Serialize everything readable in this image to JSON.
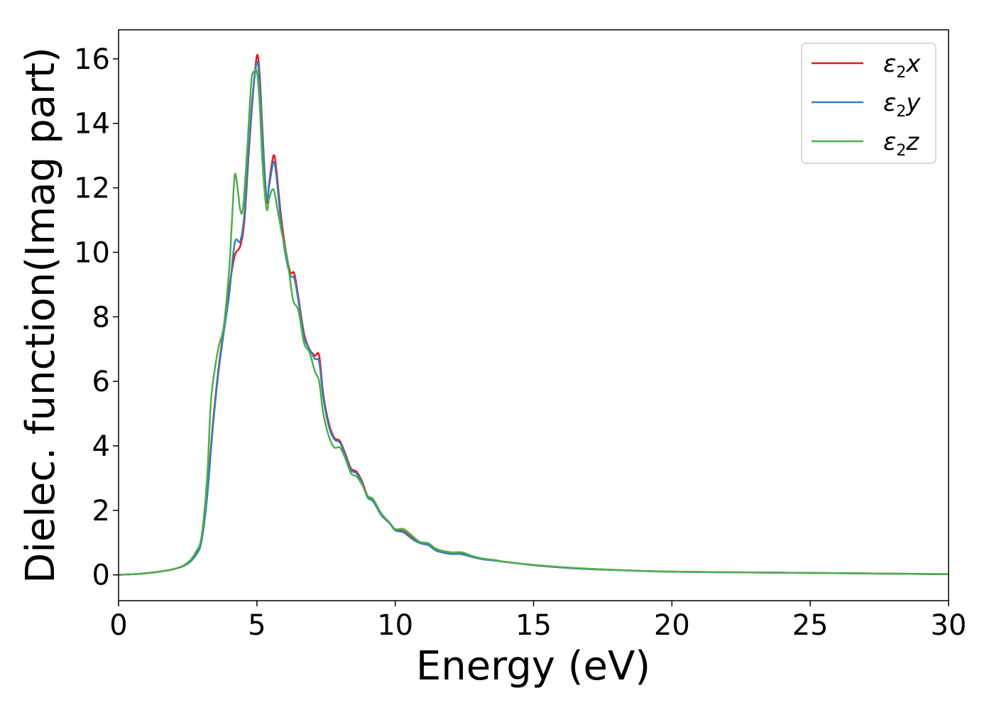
{
  "chart_data": {
    "type": "line",
    "title": "",
    "xlabel": "Energy (eV)",
    "ylabel": "Dielec. function(Imag part)",
    "xlim": [
      0,
      30
    ],
    "ylim": [
      -0.8,
      16.9
    ],
    "xticks": [
      0,
      5,
      10,
      15,
      20,
      25,
      30
    ],
    "yticks": [
      0,
      2,
      4,
      6,
      8,
      10,
      12,
      14,
      16
    ],
    "grid": false,
    "legend_position": "top-right",
    "series": [
      {
        "name": "ε2x",
        "legend": {
          "base": "ε",
          "sub": "2",
          "tail": "x"
        },
        "color": "#e41a1c",
        "points": [
          [
            0,
            0
          ],
          [
            1,
            0.05
          ],
          [
            2,
            0.18
          ],
          [
            2.5,
            0.35
          ],
          [
            2.8,
            0.65
          ],
          [
            3.0,
            1.1
          ],
          [
            3.2,
            2.5
          ],
          [
            3.4,
            4.6
          ],
          [
            3.6,
            6.3
          ],
          [
            3.8,
            7.6
          ],
          [
            4.0,
            8.9
          ],
          [
            4.2,
            9.9
          ],
          [
            4.4,
            10.2
          ],
          [
            4.55,
            11.0
          ],
          [
            4.7,
            13.0
          ],
          [
            4.85,
            14.8
          ],
          [
            5.0,
            16.1
          ],
          [
            5.1,
            15.5
          ],
          [
            5.2,
            13.8
          ],
          [
            5.35,
            11.6
          ],
          [
            5.45,
            12.2
          ],
          [
            5.6,
            13.0
          ],
          [
            5.7,
            12.6
          ],
          [
            5.85,
            11.3
          ],
          [
            6.0,
            10.3
          ],
          [
            6.2,
            9.4
          ],
          [
            6.35,
            9.35
          ],
          [
            6.5,
            8.6
          ],
          [
            6.7,
            7.5
          ],
          [
            6.9,
            7.0
          ],
          [
            7.1,
            6.8
          ],
          [
            7.25,
            6.8
          ],
          [
            7.4,
            5.6
          ],
          [
            7.6,
            4.7
          ],
          [
            7.8,
            4.25
          ],
          [
            8.0,
            4.15
          ],
          [
            8.2,
            3.75
          ],
          [
            8.4,
            3.3
          ],
          [
            8.6,
            3.2
          ],
          [
            8.8,
            2.9
          ],
          [
            9.0,
            2.45
          ],
          [
            9.2,
            2.3
          ],
          [
            9.5,
            1.85
          ],
          [
            9.8,
            1.6
          ],
          [
            10.0,
            1.4
          ],
          [
            10.3,
            1.35
          ],
          [
            10.6,
            1.15
          ],
          [
            10.9,
            1.0
          ],
          [
            11.2,
            0.95
          ],
          [
            11.5,
            0.75
          ],
          [
            12.0,
            0.65
          ],
          [
            12.4,
            0.65
          ],
          [
            12.8,
            0.55
          ],
          [
            13.2,
            0.48
          ],
          [
            13.6,
            0.45
          ],
          [
            14.0,
            0.4
          ],
          [
            15.0,
            0.3
          ],
          [
            16.0,
            0.23
          ],
          [
            17.0,
            0.18
          ],
          [
            18.0,
            0.15
          ],
          [
            19.0,
            0.12
          ],
          [
            20.0,
            0.1
          ],
          [
            22.0,
            0.08
          ],
          [
            25.0,
            0.06
          ],
          [
            27.5,
            0.04
          ],
          [
            30.0,
            0.02
          ]
        ]
      },
      {
        "name": "ε2y",
        "legend": {
          "base": "ε",
          "sub": "2",
          "tail": "y"
        },
        "color": "#377eb8",
        "points": [
          [
            0,
            0
          ],
          [
            1,
            0.05
          ],
          [
            2,
            0.18
          ],
          [
            2.5,
            0.35
          ],
          [
            2.8,
            0.62
          ],
          [
            3.0,
            1.05
          ],
          [
            3.2,
            2.4
          ],
          [
            3.4,
            4.5
          ],
          [
            3.6,
            6.2
          ],
          [
            3.8,
            7.5
          ],
          [
            4.0,
            8.7
          ],
          [
            4.2,
            10.3
          ],
          [
            4.4,
            10.35
          ],
          [
            4.55,
            11.2
          ],
          [
            4.7,
            13.2
          ],
          [
            4.85,
            14.9
          ],
          [
            5.0,
            15.9
          ],
          [
            5.1,
            15.3
          ],
          [
            5.2,
            13.6
          ],
          [
            5.35,
            11.7
          ],
          [
            5.45,
            12.1
          ],
          [
            5.6,
            12.8
          ],
          [
            5.7,
            12.4
          ],
          [
            5.85,
            11.1
          ],
          [
            6.0,
            10.1
          ],
          [
            6.2,
            9.3
          ],
          [
            6.35,
            9.2
          ],
          [
            6.5,
            8.5
          ],
          [
            6.7,
            7.4
          ],
          [
            6.9,
            7.0
          ],
          [
            7.1,
            6.7
          ],
          [
            7.25,
            6.6
          ],
          [
            7.4,
            5.5
          ],
          [
            7.6,
            4.6
          ],
          [
            7.8,
            4.2
          ],
          [
            8.0,
            4.1
          ],
          [
            8.2,
            3.7
          ],
          [
            8.4,
            3.25
          ],
          [
            8.6,
            3.15
          ],
          [
            8.8,
            2.85
          ],
          [
            9.0,
            2.4
          ],
          [
            9.2,
            2.28
          ],
          [
            9.5,
            1.85
          ],
          [
            9.8,
            1.6
          ],
          [
            10.0,
            1.38
          ],
          [
            10.3,
            1.32
          ],
          [
            10.6,
            1.12
          ],
          [
            10.9,
            0.98
          ],
          [
            11.2,
            0.92
          ],
          [
            11.5,
            0.74
          ],
          [
            12.0,
            0.66
          ],
          [
            12.4,
            0.64
          ],
          [
            12.8,
            0.55
          ],
          [
            13.2,
            0.48
          ],
          [
            13.6,
            0.44
          ],
          [
            14.0,
            0.4
          ],
          [
            15.0,
            0.3
          ],
          [
            16.0,
            0.23
          ],
          [
            17.0,
            0.18
          ],
          [
            18.0,
            0.15
          ],
          [
            19.0,
            0.12
          ],
          [
            20.0,
            0.1
          ],
          [
            22.0,
            0.08
          ],
          [
            25.0,
            0.06
          ],
          [
            27.5,
            0.04
          ],
          [
            30.0,
            0.02
          ]
        ]
      },
      {
        "name": "ε2z",
        "legend": {
          "base": "ε",
          "sub": "2",
          "tail": "z"
        },
        "color": "#4daf4a",
        "points": [
          [
            0,
            0
          ],
          [
            1,
            0.05
          ],
          [
            2,
            0.18
          ],
          [
            2.5,
            0.38
          ],
          [
            2.8,
            0.72
          ],
          [
            3.0,
            1.2
          ],
          [
            3.2,
            3.0
          ],
          [
            3.35,
            5.5
          ],
          [
            3.6,
            7.0
          ],
          [
            3.8,
            7.7
          ],
          [
            4.0,
            9.5
          ],
          [
            4.1,
            11.0
          ],
          [
            4.2,
            12.4
          ],
          [
            4.3,
            12.0
          ],
          [
            4.4,
            11.3
          ],
          [
            4.5,
            11.4
          ],
          [
            4.65,
            13.2
          ],
          [
            4.8,
            15.3
          ],
          [
            4.9,
            15.6
          ],
          [
            5.0,
            15.6
          ],
          [
            5.1,
            14.6
          ],
          [
            5.2,
            12.8
          ],
          [
            5.35,
            11.35
          ],
          [
            5.45,
            11.7
          ],
          [
            5.6,
            11.95
          ],
          [
            5.75,
            11.3
          ],
          [
            5.9,
            10.6
          ],
          [
            6.1,
            9.8
          ],
          [
            6.3,
            8.55
          ],
          [
            6.5,
            8.2
          ],
          [
            6.7,
            7.2
          ],
          [
            6.9,
            6.9
          ],
          [
            7.1,
            6.3
          ],
          [
            7.25,
            6.0
          ],
          [
            7.4,
            5.0
          ],
          [
            7.6,
            4.3
          ],
          [
            7.8,
            3.95
          ],
          [
            8.0,
            3.95
          ],
          [
            8.2,
            3.6
          ],
          [
            8.4,
            3.15
          ],
          [
            8.6,
            3.05
          ],
          [
            8.8,
            2.8
          ],
          [
            9.0,
            2.45
          ],
          [
            9.2,
            2.35
          ],
          [
            9.5,
            1.9
          ],
          [
            9.8,
            1.62
          ],
          [
            10.0,
            1.42
          ],
          [
            10.3,
            1.42
          ],
          [
            10.6,
            1.22
          ],
          [
            10.9,
            1.02
          ],
          [
            11.2,
            0.98
          ],
          [
            11.5,
            0.8
          ],
          [
            12.0,
            0.7
          ],
          [
            12.4,
            0.7
          ],
          [
            12.8,
            0.58
          ],
          [
            13.2,
            0.5
          ],
          [
            13.6,
            0.46
          ],
          [
            14.0,
            0.4
          ],
          [
            15.0,
            0.31
          ],
          [
            16.0,
            0.24
          ],
          [
            17.0,
            0.19
          ],
          [
            18.0,
            0.15
          ],
          [
            19.0,
            0.12
          ],
          [
            20.0,
            0.1
          ],
          [
            22.0,
            0.08
          ],
          [
            25.0,
            0.06
          ],
          [
            27.5,
            0.04
          ],
          [
            30.0,
            0.02
          ]
        ]
      }
    ]
  }
}
